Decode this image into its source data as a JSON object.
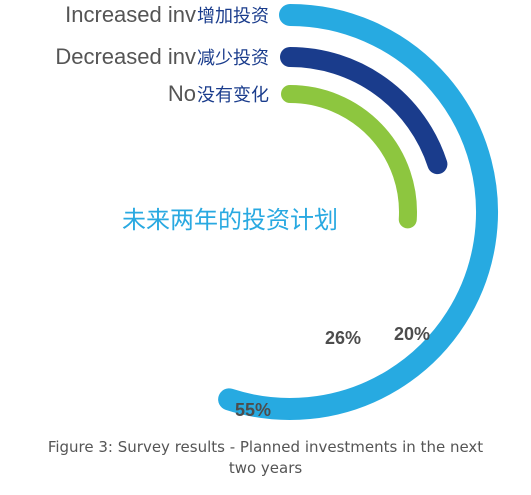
{
  "chart_data": {
    "type": "radial-bar",
    "title": "未来两年的投资计划",
    "caption_lines": [
      "Figure 3: Survey results - Planned investments in the next",
      "two years"
    ],
    "series": [
      {
        "name_en": "Increased inv",
        "name_zh": "增加投资",
        "value": 55,
        "value_label": "55%",
        "color": "#27aae1"
      },
      {
        "name_en": "Decreased inv",
        "name_zh": "减少投资",
        "value": 20,
        "value_label": "20%",
        "color": "#1a3c8c"
      },
      {
        "name_en": "No",
        "name_zh": "没有变化",
        "value": 26,
        "value_label": "26%",
        "color": "#8dc63f"
      }
    ],
    "colors": {
      "title": "#29a9e1",
      "label_en": "#555555",
      "label_zh": "#1a3c8c",
      "value_label": "#4d4d4d"
    }
  }
}
